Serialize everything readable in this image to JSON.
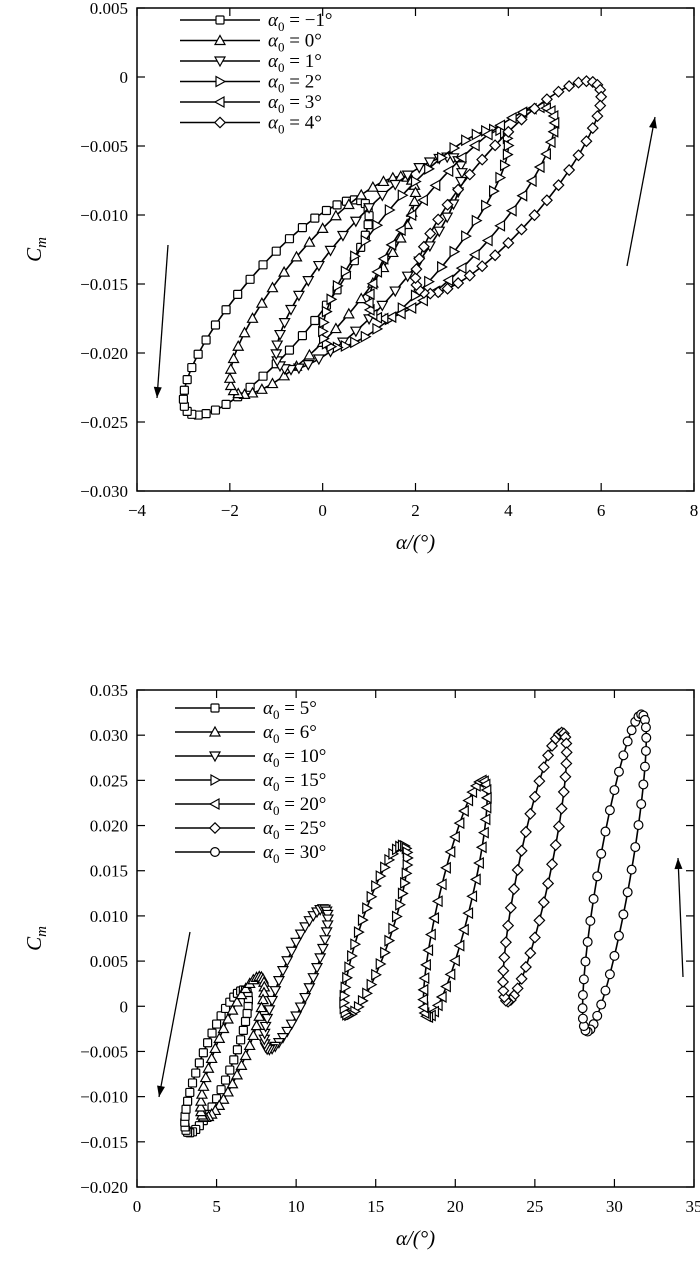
{
  "chart_data": [
    {
      "type": "line",
      "xlabel": "α/(°)",
      "ylabel": "Cm",
      "xlim": [
        -4,
        8
      ],
      "ylim": [
        -0.03,
        0.005
      ],
      "xticks": [
        "−4",
        "−2",
        "0",
        "2",
        "4",
        "6",
        "8"
      ],
      "yticks": [
        "0.005",
        "0",
        "−0.005",
        "−0.010",
        "−0.015",
        "−0.020",
        "−0.025",
        "−0.030"
      ],
      "grid": false,
      "legend_position": "top-left",
      "loop_amplitude_deg": 2,
      "annotations": [
        "arrow down on left side",
        "arrow up on right side"
      ],
      "series": [
        {
          "name": "α0 = −1°",
          "marker": "square",
          "center": [
            -1,
            -0.0167
          ],
          "alpha_range": [
            -3,
            1
          ],
          "cm_range": [
            -0.0245,
            -0.0089
          ]
        },
        {
          "name": "α0 = 0°",
          "marker": "triangle-up",
          "center": [
            0,
            -0.0151
          ],
          "alpha_range": [
            -2,
            2
          ],
          "cm_range": [
            -0.023,
            -0.0072
          ]
        },
        {
          "name": "α0 = 1°",
          "marker": "triangle-down",
          "center": [
            1,
            -0.0135
          ],
          "alpha_range": [
            -1,
            3
          ],
          "cm_range": [
            -0.0212,
            -0.0058
          ]
        },
        {
          "name": "α0 = 2°",
          "marker": "triangle-right",
          "center": [
            2,
            -0.0117
          ],
          "alpha_range": [
            0,
            4
          ],
          "cm_range": [
            -0.0196,
            -0.0038
          ]
        },
        {
          "name": "α0 = 3°",
          "marker": "triangle-left",
          "center": [
            3,
            -0.0098
          ],
          "alpha_range": [
            1,
            5
          ],
          "cm_range": [
            -0.0175,
            -0.0022
          ]
        },
        {
          "name": "α0 = 4°",
          "marker": "diamond",
          "center": [
            4,
            -0.008
          ],
          "alpha_range": [
            2,
            6
          ],
          "cm_range": [
            -0.0157,
            -0.0003
          ]
        }
      ]
    },
    {
      "type": "line",
      "xlabel": "α/(°)",
      "ylabel": "Cm",
      "xlim": [
        0,
        35
      ],
      "ylim": [
        -0.02,
        0.035
      ],
      "xticks": [
        "0",
        "5",
        "10",
        "15",
        "20",
        "25",
        "30",
        "35"
      ],
      "yticks": [
        "0.035",
        "0.030",
        "0.025",
        "0.020",
        "0.015",
        "0.010",
        "0.005",
        "0",
        "−0.005",
        "−0.010",
        "−0.015",
        "−0.020"
      ],
      "grid": false,
      "legend_position": "top-left",
      "loop_amplitude_deg": 2,
      "annotations": [
        "arrow down on left side",
        "arrow up on right side"
      ],
      "series": [
        {
          "name": "α0 = 5°",
          "marker": "square",
          "center": [
            5,
            -0.006
          ],
          "alpha_range": [
            3,
            7
          ],
          "cm_range": [
            -0.014,
            0.0018
          ]
        },
        {
          "name": "α0 = 6°",
          "marker": "triangle-up",
          "center": [
            6,
            -0.0045
          ],
          "alpha_range": [
            4,
            8
          ],
          "cm_range": [
            -0.0123,
            0.0033
          ]
        },
        {
          "name": "α0 = 10°",
          "marker": "triangle-down",
          "center": [
            10,
            0.003
          ],
          "alpha_range": [
            8,
            12
          ],
          "cm_range": [
            -0.0048,
            0.0108
          ]
        },
        {
          "name": "α0 = 15°",
          "marker": "triangle-right",
          "center": [
            15,
            0.0085
          ],
          "alpha_range": [
            13,
            17
          ],
          "cm_range": [
            -0.001,
            0.0178
          ]
        },
        {
          "name": "α0 = 20°",
          "marker": "triangle-left",
          "center": [
            20,
            0.012
          ],
          "alpha_range": [
            18,
            22
          ],
          "cm_range": [
            -0.0012,
            0.025
          ]
        },
        {
          "name": "α0 = 25°",
          "marker": "diamond",
          "center": [
            25,
            0.0155
          ],
          "alpha_range": [
            23,
            27
          ],
          "cm_range": [
            0.0005,
            0.0303
          ]
        },
        {
          "name": "α0 = 30°",
          "marker": "circle",
          "center": [
            30,
            0.0148
          ],
          "alpha_range": [
            28,
            32
          ],
          "cm_range": [
            -0.0028,
            0.0323
          ]
        }
      ]
    }
  ]
}
